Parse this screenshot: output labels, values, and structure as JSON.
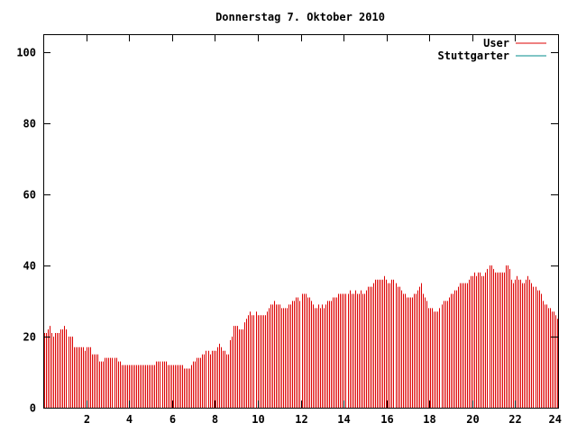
{
  "chart_data": {
    "type": "bar",
    "title": "Donnerstag 7. Oktober 2010",
    "xlabel": "",
    "ylabel": "",
    "xlim": [
      0,
      24
    ],
    "ylim": [
      0,
      105
    ],
    "x_ticks": [
      2,
      4,
      6,
      8,
      10,
      12,
      14,
      16,
      18,
      20,
      22,
      24
    ],
    "y_ticks": [
      0,
      20,
      40,
      60,
      80,
      100
    ],
    "grid": false,
    "legend_position": "top-right",
    "colors": {
      "User": "#dd0000",
      "Stuttgarter": "#008b8b",
      "axes": "#000000"
    },
    "series": [
      {
        "name": "User",
        "color": "#dd0000",
        "values": [
          21,
          21,
          22,
          23,
          21,
          20,
          21,
          21,
          21,
          22,
          22,
          23,
          22,
          20,
          20,
          20,
          17,
          17,
          17,
          17,
          17,
          17,
          16,
          17,
          17,
          17,
          15,
          15,
          15,
          15,
          13,
          13,
          13,
          14,
          14,
          14,
          14,
          14,
          14,
          14,
          13,
          13,
          12,
          12,
          12,
          12,
          12,
          12,
          12,
          12,
          12,
          12,
          12,
          12,
          12,
          12,
          12,
          12,
          12,
          12,
          12,
          13,
          13,
          13,
          13,
          13,
          13,
          12,
          12,
          12,
          12,
          12,
          12,
          12,
          12,
          12,
          11,
          11,
          11,
          11,
          12,
          13,
          13,
          14,
          14,
          14,
          15,
          15,
          16,
          16,
          15,
          16,
          16,
          16,
          17,
          18,
          17,
          16,
          16,
          15,
          15,
          19,
          20,
          23,
          23,
          23,
          22,
          22,
          22,
          24,
          25,
          26,
          27,
          26,
          26,
          27,
          26,
          26,
          26,
          26,
          26,
          27,
          28,
          29,
          29,
          30,
          29,
          29,
          29,
          28,
          28,
          28,
          28,
          29,
          29,
          30,
          30,
          31,
          31,
          30,
          32,
          32,
          32,
          31,
          31,
          30,
          29,
          28,
          28,
          29,
          28,
          29,
          28,
          29,
          30,
          30,
          30,
          31,
          31,
          31,
          32,
          32,
          32,
          32,
          32,
          32,
          33,
          32,
          32,
          33,
          32,
          32,
          33,
          32,
          32,
          33,
          34,
          34,
          34,
          35,
          36,
          36,
          36,
          36,
          36,
          37,
          36,
          35,
          35,
          36,
          36,
          35,
          34,
          34,
          33,
          32,
          32,
          31,
          31,
          31,
          31,
          32,
          32,
          33,
          34,
          35,
          32,
          31,
          30,
          28,
          28,
          28,
          27,
          27,
          27,
          28,
          29,
          30,
          30,
          30,
          31,
          32,
          32,
          33,
          33,
          34,
          35,
          35,
          35,
          35,
          35,
          36,
          37,
          37,
          38,
          37,
          38,
          38,
          37,
          37,
          38,
          39,
          40,
          40,
          39,
          38,
          38,
          38,
          38,
          38,
          38,
          40,
          40,
          39,
          36,
          35,
          36,
          37,
          36,
          36,
          35,
          35,
          36,
          37,
          36,
          35,
          34,
          34,
          33,
          33,
          32,
          30,
          29,
          29,
          28,
          28,
          27,
          27,
          26,
          25
        ]
      },
      {
        "name": "Stuttgarter",
        "color": "#008b8b",
        "values": []
      }
    ]
  }
}
